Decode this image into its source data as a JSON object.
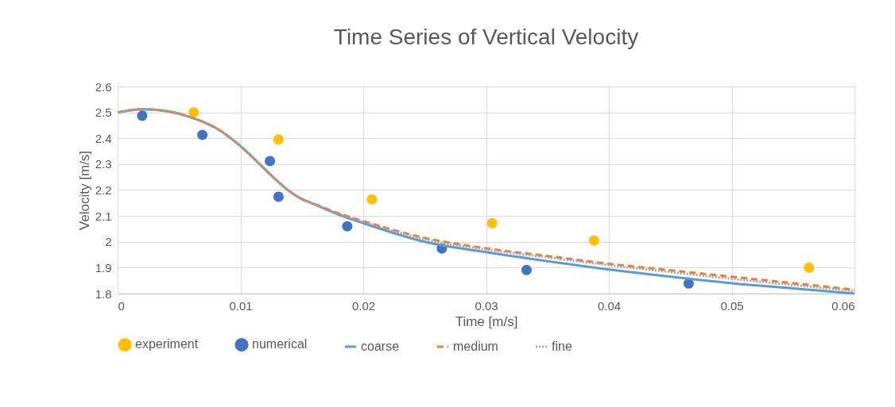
{
  "chart_data": {
    "type": "line",
    "title": "Time Series of Vertical Velocity",
    "xlabel": "Time [m/s]",
    "ylabel": "Velocity [m/s]",
    "xlim": [
      0,
      0.06
    ],
    "ylim": [
      1.8,
      2.6
    ],
    "xticks": [
      0,
      0.01,
      0.02,
      0.03,
      0.04,
      0.05,
      0.06
    ],
    "yticks": [
      1.8,
      1.9,
      2,
      2.1,
      2.2,
      2.3,
      2.4,
      2.5,
      2.6
    ],
    "grid": true,
    "legend": "bottom",
    "series": [
      {
        "name": "experiment",
        "type": "scatter",
        "marker": "circle",
        "color": "#ffc000",
        "x": [
          0.0062,
          0.0131,
          0.0207,
          0.0305,
          0.0388,
          0.0563
        ],
        "values": [
          2.5,
          2.395,
          2.164,
          2.072,
          2.005,
          1.9
        ]
      },
      {
        "name": "numerical",
        "type": "scatter",
        "marker": "circle",
        "color": "#4472c4",
        "x": [
          0.002,
          0.0069,
          0.0124,
          0.0131,
          0.0187,
          0.0264,
          0.0333,
          0.0465
        ],
        "values": [
          2.487,
          2.413,
          2.312,
          2.174,
          2.06,
          1.974,
          1.891,
          1.839
        ]
      },
      {
        "name": "coarse",
        "line_style": "solid",
        "color": "#5b9bd5",
        "x": [
          0,
          0.002,
          0.004,
          0.006,
          0.008,
          0.01,
          0.012,
          0.013,
          0.014,
          0.015,
          0.016,
          0.018,
          0.02,
          0.025,
          0.03,
          0.035,
          0.04,
          0.045,
          0.05,
          0.055,
          0.06
        ],
        "values": [
          2.5,
          2.512,
          2.505,
          2.48,
          2.44,
          2.37,
          2.28,
          2.235,
          2.195,
          2.165,
          2.145,
          2.105,
          2.072,
          2.0,
          1.96,
          1.925,
          1.893,
          1.865,
          1.84,
          1.82,
          1.8
        ]
      },
      {
        "name": "medium",
        "line_style": "dashed",
        "color": "#ed7d31",
        "x": [
          0,
          0.002,
          0.004,
          0.006,
          0.008,
          0.01,
          0.012,
          0.013,
          0.014,
          0.015,
          0.016,
          0.018,
          0.02,
          0.025,
          0.03,
          0.035,
          0.04,
          0.045,
          0.05,
          0.055,
          0.06
        ],
        "values": [
          2.5,
          2.512,
          2.505,
          2.48,
          2.44,
          2.37,
          2.28,
          2.235,
          2.195,
          2.165,
          2.147,
          2.11,
          2.08,
          2.015,
          1.975,
          1.945,
          1.915,
          1.89,
          1.865,
          1.84,
          1.815
        ]
      },
      {
        "name": "fine",
        "line_style": "dotted",
        "color": "#a5a5a5",
        "x": [
          0,
          0.002,
          0.004,
          0.006,
          0.008,
          0.01,
          0.012,
          0.013,
          0.014,
          0.015,
          0.016,
          0.018,
          0.02,
          0.025,
          0.03,
          0.035,
          0.04,
          0.045,
          0.05,
          0.055,
          0.06
        ],
        "values": [
          2.5,
          2.512,
          2.505,
          2.48,
          2.44,
          2.37,
          2.28,
          2.235,
          2.195,
          2.165,
          2.146,
          2.108,
          2.077,
          2.01,
          1.97,
          1.94,
          1.91,
          1.883,
          1.857,
          1.833,
          1.81
        ]
      }
    ]
  }
}
